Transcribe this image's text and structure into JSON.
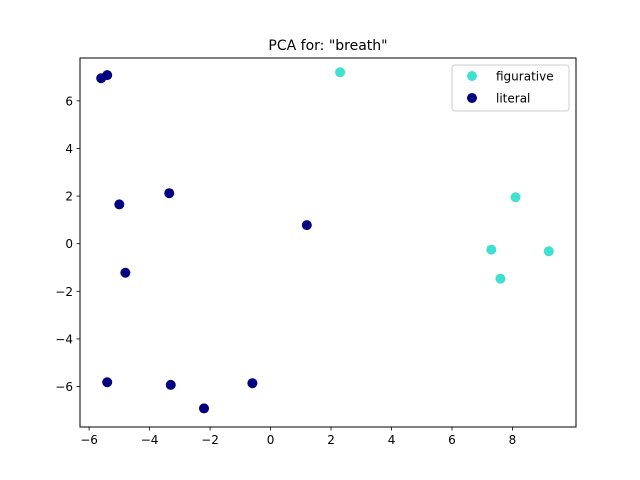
{
  "chart_data": {
    "type": "scatter",
    "title": "PCA for: \"breath\"",
    "xlabel": "",
    "ylabel": "",
    "xlim": [
      -6.3,
      10.1
    ],
    "ylim": [
      -7.7,
      7.8
    ],
    "xticks": [
      -6,
      -4,
      -2,
      0,
      2,
      4,
      6,
      8
    ],
    "yticks": [
      -6,
      -4,
      -2,
      0,
      2,
      4,
      6
    ],
    "grid": false,
    "legend_position": "top-right",
    "series": [
      {
        "name": "figurative",
        "color": "#40E0D0",
        "points": [
          {
            "x": 2.3,
            "y": 7.2
          },
          {
            "x": 8.1,
            "y": 1.95
          },
          {
            "x": 7.3,
            "y": -0.25
          },
          {
            "x": 9.2,
            "y": -0.32
          },
          {
            "x": 7.6,
            "y": -1.47
          }
        ]
      },
      {
        "name": "literal",
        "color": "#000080",
        "points": [
          {
            "x": -5.6,
            "y": 6.95
          },
          {
            "x": -5.4,
            "y": 7.08
          },
          {
            "x": -3.35,
            "y": 2.12
          },
          {
            "x": -5.0,
            "y": 1.65
          },
          {
            "x": 1.2,
            "y": 0.78
          },
          {
            "x": -4.8,
            "y": -1.22
          },
          {
            "x": -5.4,
            "y": -5.82
          },
          {
            "x": -3.3,
            "y": -5.93
          },
          {
            "x": -0.6,
            "y": -5.86
          },
          {
            "x": -2.2,
            "y": -6.92
          }
        ]
      }
    ]
  }
}
